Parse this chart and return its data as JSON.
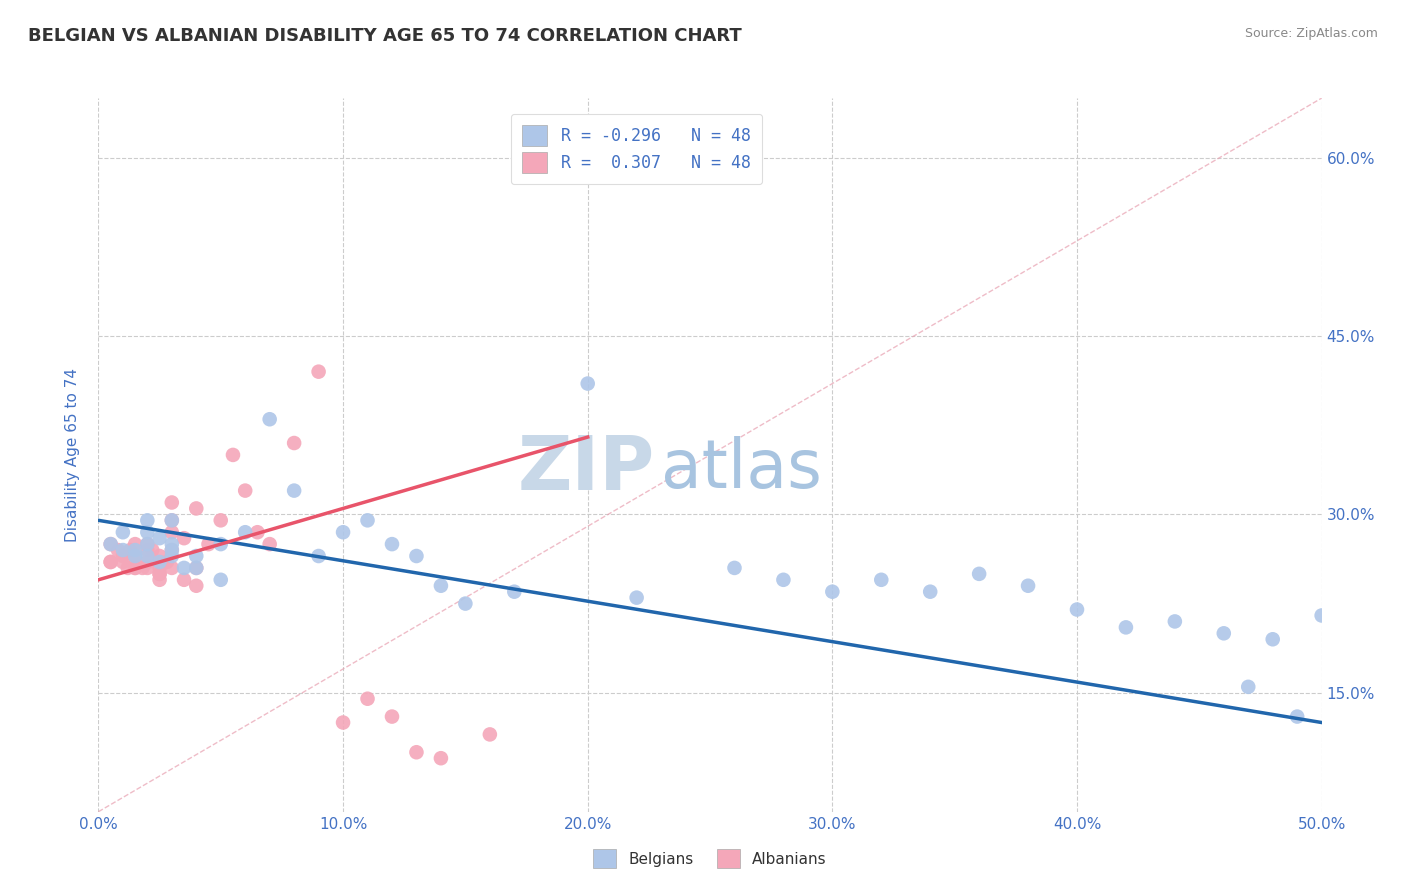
{
  "title": "BELGIAN VS ALBANIAN DISABILITY AGE 65 TO 74 CORRELATION CHART",
  "source_text": "Source: ZipAtlas.com",
  "ylabel": "Disability Age 65 to 74",
  "xlim": [
    0.0,
    0.5
  ],
  "ylim": [
    0.05,
    0.65
  ],
  "xticks": [
    0.0,
    0.1,
    0.2,
    0.3,
    0.4,
    0.5
  ],
  "yticks": [
    0.15,
    0.3,
    0.45,
    0.6
  ],
  "ytick_labels": [
    "15.0%",
    "30.0%",
    "45.0%",
    "60.0%"
  ],
  "xtick_labels": [
    "0.0%",
    "10.0%",
    "20.0%",
    "30.0%",
    "40.0%",
    "50.0%"
  ],
  "legend_r_belgian": "-0.296",
  "legend_r_albanian": " 0.307",
  "legend_n": "48",
  "belgian_color": "#aec6e8",
  "albanian_color": "#f4a7b9",
  "belgian_line_color": "#2166ac",
  "albanian_line_color": "#e8546a",
  "diagonal_color": "#cccccc",
  "background_color": "#ffffff",
  "grid_color": "#cccccc",
  "watermark_color": "#c8d8e8",
  "title_color": "#333333",
  "tick_label_color": "#4472c4",
  "belgian_scatter_x": [
    0.005,
    0.01,
    0.01,
    0.015,
    0.015,
    0.02,
    0.02,
    0.02,
    0.02,
    0.025,
    0.025,
    0.03,
    0.03,
    0.03,
    0.03,
    0.035,
    0.04,
    0.04,
    0.05,
    0.05,
    0.06,
    0.07,
    0.08,
    0.09,
    0.1,
    0.11,
    0.12,
    0.13,
    0.14,
    0.15,
    0.17,
    0.2,
    0.22,
    0.26,
    0.28,
    0.3,
    0.32,
    0.34,
    0.36,
    0.38,
    0.4,
    0.42,
    0.44,
    0.46,
    0.47,
    0.48,
    0.49,
    0.5
  ],
  "belgian_scatter_y": [
    0.275,
    0.27,
    0.285,
    0.27,
    0.265,
    0.265,
    0.275,
    0.285,
    0.295,
    0.26,
    0.28,
    0.265,
    0.27,
    0.275,
    0.295,
    0.255,
    0.255,
    0.265,
    0.275,
    0.245,
    0.285,
    0.38,
    0.32,
    0.265,
    0.285,
    0.295,
    0.275,
    0.265,
    0.24,
    0.225,
    0.235,
    0.41,
    0.23,
    0.255,
    0.245,
    0.235,
    0.245,
    0.235,
    0.25,
    0.24,
    0.22,
    0.205,
    0.21,
    0.2,
    0.155,
    0.195,
    0.13,
    0.215
  ],
  "albanian_scatter_x": [
    0.005,
    0.005,
    0.005,
    0.008,
    0.01,
    0.01,
    0.012,
    0.013,
    0.015,
    0.015,
    0.015,
    0.015,
    0.018,
    0.02,
    0.02,
    0.02,
    0.02,
    0.022,
    0.025,
    0.025,
    0.025,
    0.025,
    0.025,
    0.028,
    0.03,
    0.03,
    0.03,
    0.03,
    0.03,
    0.035,
    0.035,
    0.04,
    0.04,
    0.04,
    0.045,
    0.05,
    0.055,
    0.06,
    0.065,
    0.07,
    0.08,
    0.09,
    0.1,
    0.11,
    0.12,
    0.13,
    0.14,
    0.16
  ],
  "albanian_scatter_y": [
    0.26,
    0.275,
    0.26,
    0.27,
    0.265,
    0.26,
    0.255,
    0.27,
    0.275,
    0.265,
    0.255,
    0.255,
    0.255,
    0.27,
    0.275,
    0.255,
    0.26,
    0.27,
    0.255,
    0.25,
    0.265,
    0.25,
    0.245,
    0.26,
    0.295,
    0.285,
    0.27,
    0.31,
    0.255,
    0.28,
    0.245,
    0.305,
    0.255,
    0.24,
    0.275,
    0.295,
    0.35,
    0.32,
    0.285,
    0.275,
    0.36,
    0.42,
    0.125,
    0.145,
    0.13,
    0.1,
    0.095,
    0.115
  ],
  "albanian_line_x_start": 0.0,
  "albanian_line_x_end": 0.2,
  "albanian_line_y_start": 0.245,
  "albanian_line_y_end": 0.365,
  "belgian_line_x_start": 0.0,
  "belgian_line_x_end": 0.5,
  "belgian_line_y_start": 0.295,
  "belgian_line_y_end": 0.125
}
